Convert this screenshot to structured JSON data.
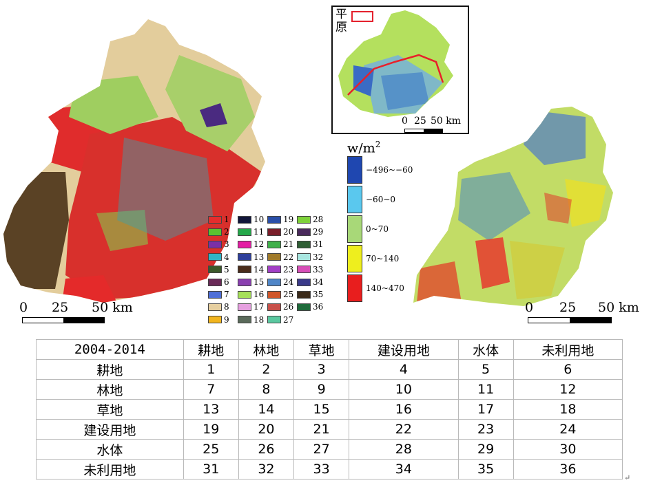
{
  "left_map": {
    "scale": {
      "ticks": [
        "0",
        "25",
        "50 km"
      ]
    },
    "legend": [
      {
        "id": "1",
        "color": "#e52d2d"
      },
      {
        "id": "10",
        "color": "#12163a"
      },
      {
        "id": "19",
        "color": "#2a4fa8"
      },
      {
        "id": "28",
        "color": "#7ed23a"
      },
      {
        "id": "2",
        "color": "#5ac230"
      },
      {
        "id": "11",
        "color": "#24a84a"
      },
      {
        "id": "20",
        "color": "#7a1e2a"
      },
      {
        "id": "29",
        "color": "#4a2a5c"
      },
      {
        "id": "3",
        "color": "#7b2fa6"
      },
      {
        "id": "12",
        "color": "#e41ea4"
      },
      {
        "id": "21",
        "color": "#3fb04a"
      },
      {
        "id": "31",
        "color": "#2e5e34"
      },
      {
        "id": "4",
        "color": "#31b3c6"
      },
      {
        "id": "13",
        "color": "#2e3f9a"
      },
      {
        "id": "22",
        "color": "#a07a2a"
      },
      {
        "id": "32",
        "color": "#a8e6e0"
      },
      {
        "id": "5",
        "color": "#3c5a2a"
      },
      {
        "id": "14",
        "color": "#4a2c1a"
      },
      {
        "id": "23",
        "color": "#a23fc6"
      },
      {
        "id": "33",
        "color": "#d84fb8"
      },
      {
        "id": "6",
        "color": "#6a2a58"
      },
      {
        "id": "15",
        "color": "#8a3fb0"
      },
      {
        "id": "24",
        "color": "#4f86c8"
      },
      {
        "id": "34",
        "color": "#3a3a8a"
      },
      {
        "id": "7",
        "color": "#4f6fd8"
      },
      {
        "id": "16",
        "color": "#a6e05a"
      },
      {
        "id": "25",
        "color": "#d0562a"
      },
      {
        "id": "35",
        "color": "#3a2a1a"
      },
      {
        "id": "8",
        "color": "#e6cfa0"
      },
      {
        "id": "17",
        "color": "#e6a0e0"
      },
      {
        "id": "26",
        "color": "#c8504a"
      },
      {
        "id": "36",
        "color": "#1e6a3a"
      },
      {
        "id": "9",
        "color": "#f2b51e"
      },
      {
        "id": "18",
        "color": "#5a6a5a"
      },
      {
        "id": "27",
        "color": "#5ac8a0"
      }
    ]
  },
  "inset": {
    "label": "平原",
    "scale": {
      "ticks": [
        "0",
        "25",
        "50 km"
      ]
    }
  },
  "flux_legend": {
    "unit_base": "w/m",
    "unit_sup": "2",
    "classes": [
      {
        "label": "−496~−60",
        "color": "#1f47b0"
      },
      {
        "label": "−60~0",
        "color": "#5ac8ee"
      },
      {
        "label": "0~70",
        "color": "#a8d878"
      },
      {
        "label": "70~140",
        "color": "#eeee1e"
      },
      {
        "label": "140~470",
        "color": "#e81e1e"
      }
    ]
  },
  "right_map": {
    "scale": {
      "ticks": [
        "0",
        "25",
        "50 km"
      ]
    }
  },
  "matrix": {
    "corner": "2004-2014",
    "columns": [
      "耕地",
      "林地",
      "草地",
      "建设用地",
      "水体",
      "未利用地"
    ],
    "rows": [
      {
        "label": "耕地",
        "cells": [
          "1",
          "2",
          "3",
          "4",
          "5",
          "6"
        ]
      },
      {
        "label": "林地",
        "cells": [
          "7",
          "8",
          "9",
          "10",
          "11",
          "12"
        ]
      },
      {
        "label": "草地",
        "cells": [
          "13",
          "14",
          "15",
          "16",
          "17",
          "18"
        ]
      },
      {
        "label": "建设用地",
        "cells": [
          "19",
          "20",
          "21",
          "22",
          "23",
          "24"
        ]
      },
      {
        "label": "水体",
        "cells": [
          "25",
          "26",
          "27",
          "28",
          "29",
          "30"
        ]
      },
      {
        "label": "未利用地",
        "cells": [
          "31",
          "32",
          "33",
          "34",
          "35",
          "36"
        ]
      }
    ]
  },
  "return_mark": "↵"
}
